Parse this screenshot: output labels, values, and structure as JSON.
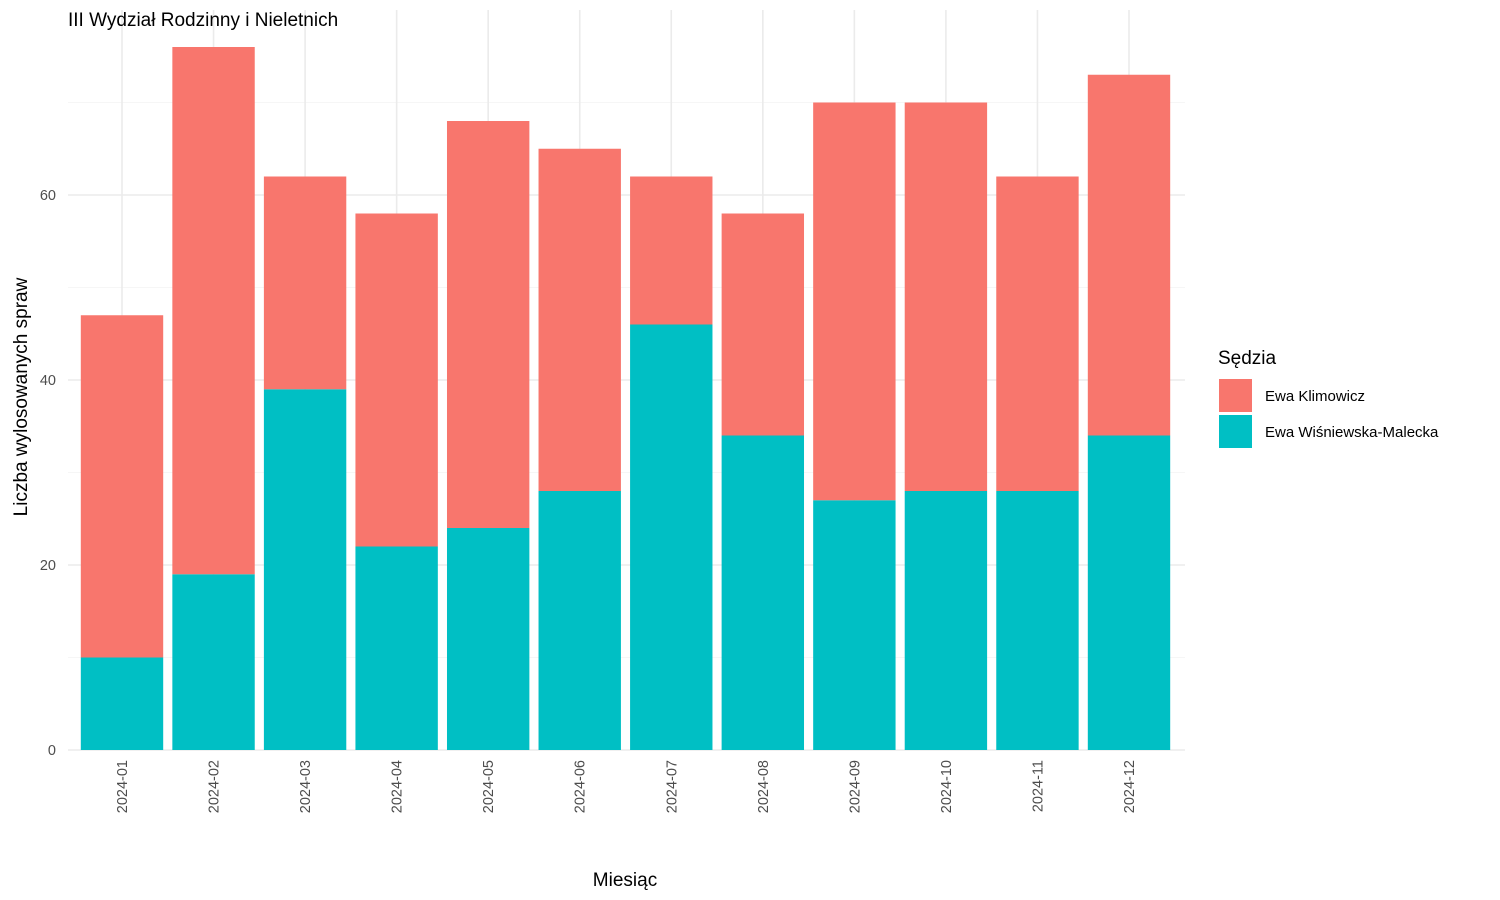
{
  "chart_data": {
    "type": "bar",
    "stacked": true,
    "title": "III Wydział Rodzinny i Nieletnich",
    "xlabel": "Miesiąc",
    "ylabel": "Liczba wylosowanych spraw",
    "categories": [
      "2024-01",
      "2024-02",
      "2024-03",
      "2024-04",
      "2024-05",
      "2024-06",
      "2024-07",
      "2024-08",
      "2024-09",
      "2024-10",
      "2024-11",
      "2024-12"
    ],
    "series": [
      {
        "name": "Ewa Wiśniewska-Malecka",
        "color": "#00BFC4",
        "values": [
          10,
          19,
          39,
          22,
          24,
          28,
          46,
          34,
          27,
          28,
          28,
          34
        ]
      },
      {
        "name": "Ewa Klimowicz",
        "color": "#F8766D",
        "values": [
          37,
          57,
          23,
          36,
          44,
          37,
          16,
          24,
          43,
          42,
          34,
          39
        ]
      }
    ],
    "ylim": [
      0,
      80
    ],
    "yticks": [
      0,
      20,
      40,
      60
    ],
    "grid": true,
    "legend": {
      "title": "Sędzia",
      "placement": "right",
      "entries": [
        {
          "label": "Ewa Klimowicz",
          "color": "#F8766D"
        },
        {
          "label": "Ewa Wiśniewska-Malecka",
          "color": "#00BFC4"
        }
      ]
    }
  }
}
